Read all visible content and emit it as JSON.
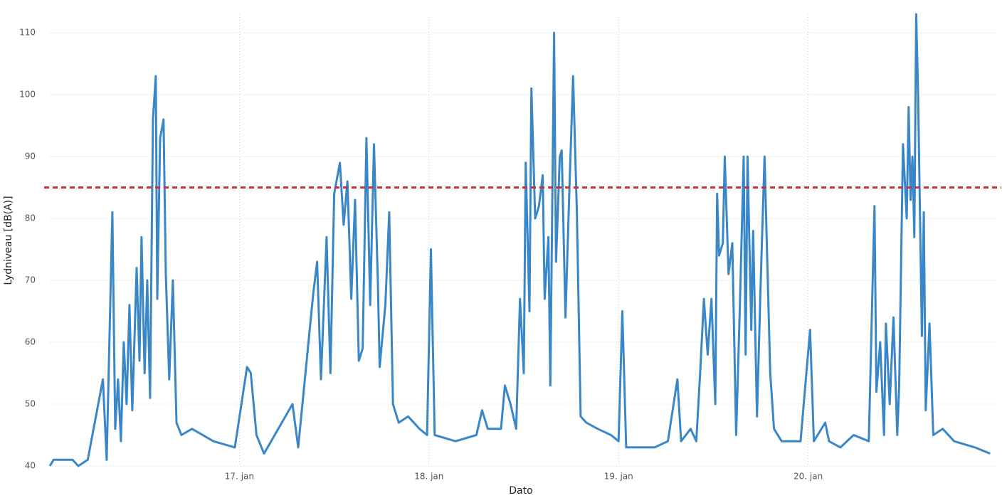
{
  "chart_data": {
    "type": "line",
    "y_label": "Lydniveau [dB(A)]",
    "x_label": "Dato",
    "x": [
      16.0,
      16.02,
      16.12,
      16.15,
      16.2,
      16.28,
      16.3,
      16.33,
      16.345,
      16.36,
      16.375,
      16.39,
      16.405,
      16.42,
      16.435,
      16.458,
      16.473,
      16.484,
      16.5,
      16.514,
      16.529,
      16.544,
      16.559,
      16.567,
      16.582,
      16.6,
      16.612,
      16.63,
      16.649,
      16.668,
      16.694,
      16.75,
      16.863,
      16.976,
      17.04,
      17.06,
      17.09,
      17.13,
      17.28,
      17.31,
      17.39,
      17.41,
      17.43,
      17.46,
      17.48,
      17.5,
      17.53,
      17.55,
      17.57,
      17.59,
      17.61,
      17.63,
      17.65,
      17.67,
      17.69,
      17.71,
      17.73,
      17.74,
      17.77,
      17.79,
      17.81,
      17.84,
      17.89,
      17.95,
      17.99,
      18.01,
      18.03,
      18.14,
      18.25,
      18.28,
      18.31,
      18.38,
      18.4,
      18.43,
      18.46,
      18.48,
      18.5,
      18.51,
      18.53,
      18.54,
      18.56,
      18.58,
      18.6,
      18.61,
      18.63,
      18.64,
      18.66,
      18.67,
      18.69,
      18.7,
      18.72,
      18.74,
      18.76,
      18.78,
      18.8,
      18.83,
      18.89,
      18.96,
      19.0,
      19.02,
      19.04,
      19.19,
      19.26,
      19.31,
      19.33,
      19.38,
      19.41,
      19.43,
      19.45,
      19.47,
      19.49,
      19.51,
      19.52,
      19.53,
      19.55,
      19.56,
      19.58,
      19.6,
      19.62,
      19.64,
      19.66,
      19.67,
      19.68,
      19.7,
      19.71,
      19.73,
      19.75,
      19.77,
      19.8,
      19.82,
      19.86,
      19.96,
      20.01,
      20.03,
      20.09,
      20.11,
      20.17,
      20.24,
      20.32,
      20.35,
      20.36,
      20.38,
      20.4,
      20.41,
      20.43,
      20.45,
      20.47,
      20.48,
      20.5,
      20.52,
      20.53,
      20.54,
      20.55,
      20.56,
      20.57,
      20.58,
      20.6,
      20.61,
      20.62,
      20.64,
      20.66,
      20.71,
      20.77,
      20.88,
      20.96
    ],
    "series": [
      {
        "color": "#3a87c8",
        "values": [
          40,
          41,
          41,
          40,
          41,
          54,
          41,
          81,
          46,
          54,
          44,
          60,
          50,
          66,
          49,
          72,
          57,
          77,
          55,
          70,
          51,
          96,
          103,
          67,
          93,
          96,
          71,
          54,
          70,
          47,
          45,
          46,
          44,
          43,
          56,
          55,
          45,
          42,
          50,
          43,
          68,
          73,
          54,
          77,
          55,
          84,
          89,
          79,
          86,
          67,
          83,
          57,
          59,
          93,
          66,
          92,
          70,
          56,
          66,
          81,
          50,
          47,
          48,
          46,
          45,
          75,
          45,
          44,
          45,
          49,
          46,
          46,
          53,
          50,
          46,
          67,
          55,
          89,
          65,
          101,
          80,
          82,
          87,
          67,
          77,
          53,
          110,
          73,
          90,
          91,
          64,
          84,
          103,
          81,
          48,
          47,
          46,
          45,
          44,
          65,
          43,
          43,
          44,
          54,
          44,
          46,
          44,
          55,
          67,
          58,
          67,
          50,
          84,
          74,
          76,
          90,
          71,
          76,
          45,
          66,
          90,
          58,
          90,
          62,
          78,
          48,
          70,
          90,
          55,
          46,
          44,
          44,
          62,
          44,
          47,
          44,
          43,
          45,
          44,
          82,
          52,
          60,
          45,
          63,
          50,
          64,
          45,
          53,
          92,
          80,
          98,
          83,
          90,
          77,
          113,
          100,
          61,
          81,
          49,
          63,
          45,
          46,
          44,
          43,
          42
        ]
      }
    ],
    "xlim": [
      16,
      21
    ],
    "ylim": [
      40,
      113
    ],
    "xticks": [
      {
        "value": 17,
        "label": "17. jan"
      },
      {
        "value": 18,
        "label": "18. jan"
      },
      {
        "value": 19,
        "label": "19. jan"
      },
      {
        "value": 20,
        "label": "20. jan"
      }
    ],
    "yticks": [
      40,
      50,
      60,
      70,
      80,
      90,
      100,
      110
    ],
    "grid": true,
    "reference_line": {
      "value": 85,
      "color": "#c8323a"
    }
  }
}
